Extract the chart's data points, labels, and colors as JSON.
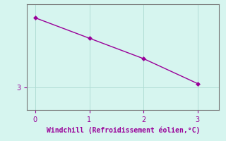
{
  "x": [
    0,
    1,
    2,
    3
  ],
  "y": [
    3.92,
    3.65,
    3.38,
    3.05
  ],
  "line_color": "#990099",
  "marker": "D",
  "marker_size": 3,
  "linestyle": "-",
  "linewidth": 1.0,
  "background_color": "#d6f5ef",
  "xlabel": "Windchill (Refroidissement éolien,°C)",
  "xlabel_color": "#990099",
  "xlabel_fontsize": 7,
  "tick_color": "#990099",
  "tick_fontsize": 7,
  "ytick_labels": [
    "3"
  ],
  "ytick_positions": [
    3.0
  ],
  "xlim": [
    -0.15,
    3.4
  ],
  "ylim": [
    2.7,
    4.1
  ],
  "grid_color": "#b0ddd5",
  "spine_color": "#777777",
  "xticks": [
    0,
    1,
    2,
    3
  ]
}
